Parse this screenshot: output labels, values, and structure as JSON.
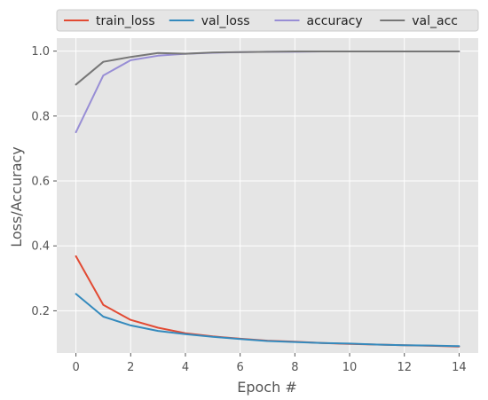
{
  "chart_data": {
    "type": "line",
    "title": "",
    "xlabel": "Epoch #",
    "ylabel": "Loss/Accuracy",
    "x": [
      0,
      1,
      2,
      3,
      4,
      5,
      6,
      7,
      8,
      9,
      10,
      11,
      12,
      13,
      14
    ],
    "xlim": [
      -0.7,
      14.7
    ],
    "ylim": [
      0.07,
      1.04
    ],
    "xticks": [
      0,
      2,
      4,
      6,
      8,
      10,
      12,
      14
    ],
    "xtick_labels": [
      "0",
      "2",
      "4",
      "6",
      "8",
      "10",
      "12",
      "14"
    ],
    "yticks": [
      0.2,
      0.4,
      0.6,
      0.8,
      1.0
    ],
    "ytick_labels": [
      "0.2",
      "0.4",
      "0.6",
      "0.8",
      "1.0"
    ],
    "grid": true,
    "style": "ggplot",
    "legend_position": "top, above plot",
    "series": [
      {
        "name": "train_loss",
        "color": "#E24A33",
        "values": [
          0.368,
          0.218,
          0.172,
          0.148,
          0.131,
          0.121,
          0.114,
          0.108,
          0.105,
          0.101,
          0.098,
          0.096,
          0.094,
          0.092,
          0.09
        ]
      },
      {
        "name": "val_loss",
        "color": "#348ABD",
        "values": [
          0.252,
          0.182,
          0.155,
          0.138,
          0.128,
          0.12,
          0.113,
          0.107,
          0.104,
          0.101,
          0.099,
          0.096,
          0.094,
          0.093,
          0.091
        ]
      },
      {
        "name": "accuracy",
        "color": "#988ED5",
        "values": [
          0.75,
          0.925,
          0.972,
          0.986,
          0.992,
          0.995,
          0.997,
          0.998,
          0.998,
          0.999,
          0.999,
          0.999,
          0.999,
          0.999,
          0.999
        ]
      },
      {
        "name": "val_acc",
        "color": "#777777",
        "values": [
          0.897,
          0.967,
          0.982,
          0.994,
          0.992,
          0.996,
          0.997,
          0.998,
          0.999,
          0.999,
          0.999,
          0.999,
          0.999,
          0.999,
          0.999
        ]
      }
    ]
  }
}
